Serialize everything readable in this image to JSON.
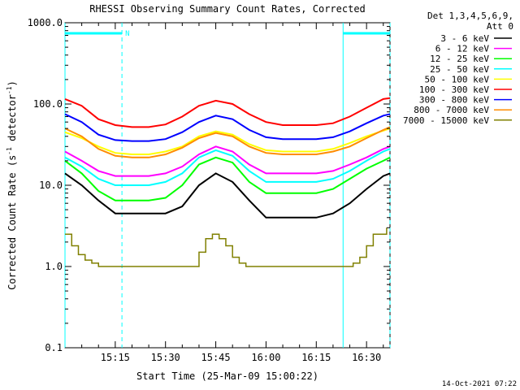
{
  "footer_date": "14-Oct-2021 07:22",
  "chart_data": {
    "type": "line",
    "title": "RHESSI Observing Summary Count Rates, Corrected",
    "xlabel": "Start Time (25-Mar-09 15:00:22)",
    "ylabel": "Corrected Count Rate (s",
    "ylabel_sup1": "-1",
    "ylabel_mid": " detector",
    "ylabel_sup2": "-1",
    "ylabel_end": ")",
    "yscale": "log",
    "ylim": [
      0.1,
      1000.0
    ],
    "xlim": [
      "15:00",
      "16:37"
    ],
    "ytick_labels": [
      "0.1",
      "1.0",
      "10.0",
      "100.0",
      "1000.0"
    ],
    "xtick_labels": [
      "15:15",
      "15:30",
      "15:45",
      "16:00",
      "16:15",
      "16:30"
    ],
    "legend_header_1": "Det 1,3,4,5,6,9,",
    "legend_header_2": "Att 0",
    "legend": "top-right",
    "night_markers": [
      {
        "label": "N",
        "start": "15:00",
        "end": "15:17"
      },
      {
        "label": "",
        "start": "16:23",
        "end": "16:37"
      }
    ],
    "series": [
      {
        "name": "3 - 6 keV",
        "color": "#000000",
        "x": [
          "15:00",
          "15:05",
          "15:10",
          "15:15",
          "15:20",
          "15:25",
          "15:30",
          "15:35",
          "15:40",
          "15:45",
          "15:50",
          "15:55",
          "16:00",
          "16:05",
          "16:10",
          "16:15",
          "16:20",
          "16:25",
          "16:30",
          "16:35",
          "16:37"
        ],
        "values": [
          14,
          10,
          6.5,
          4.5,
          4.5,
          4.5,
          4.5,
          5.5,
          10,
          14,
          11,
          6.5,
          4,
          4,
          4,
          4,
          4.5,
          6,
          9,
          13,
          14
        ]
      },
      {
        "name": "6 - 12 keV",
        "color": "#ff00ff",
        "x": [
          "15:00",
          "15:05",
          "15:10",
          "15:15",
          "15:20",
          "15:25",
          "15:30",
          "15:35",
          "15:40",
          "15:45",
          "15:50",
          "15:55",
          "16:00",
          "16:05",
          "16:10",
          "16:15",
          "16:20",
          "16:25",
          "16:30",
          "16:35",
          "16:37"
        ],
        "values": [
          26,
          20,
          15,
          13,
          13,
          13,
          14,
          17,
          24,
          30,
          26,
          18,
          14,
          14,
          14,
          14,
          15,
          18,
          22,
          28,
          30
        ]
      },
      {
        "name": "12 - 25 keV",
        "color": "#00ff00",
        "x": [
          "15:00",
          "15:05",
          "15:10",
          "15:15",
          "15:20",
          "15:25",
          "15:30",
          "15:35",
          "15:40",
          "15:45",
          "15:50",
          "15:55",
          "16:00",
          "16:05",
          "16:10",
          "16:15",
          "16:20",
          "16:25",
          "16:30",
          "16:35",
          "16:37"
        ],
        "values": [
          20,
          14,
          8.5,
          6.5,
          6.5,
          6.5,
          7,
          10,
          18,
          22,
          19,
          11,
          8,
          8,
          8,
          8,
          9,
          12,
          16,
          20,
          22
        ]
      },
      {
        "name": "25 - 50 keV",
        "color": "#00ffff",
        "x": [
          "15:00",
          "15:05",
          "15:10",
          "15:15",
          "15:20",
          "15:25",
          "15:30",
          "15:35",
          "15:40",
          "15:45",
          "15:50",
          "15:55",
          "16:00",
          "16:05",
          "16:10",
          "16:15",
          "16:20",
          "16:25",
          "16:30",
          "16:35",
          "16:37"
        ],
        "values": [
          22,
          17,
          12,
          10,
          10,
          10,
          11,
          14,
          22,
          27,
          23,
          15,
          11,
          11,
          11,
          11,
          12,
          15,
          20,
          26,
          28
        ]
      },
      {
        "name": "50 - 100 keV",
        "color": "#ffff00",
        "x": [
          "15:00",
          "15:05",
          "15:10",
          "15:15",
          "15:20",
          "15:25",
          "15:30",
          "15:35",
          "15:40",
          "15:45",
          "15:50",
          "15:55",
          "16:00",
          "16:05",
          "16:10",
          "16:15",
          "16:20",
          "16:25",
          "16:30",
          "16:35",
          "16:37"
        ],
        "values": [
          45,
          38,
          30,
          25,
          24,
          24,
          26,
          30,
          40,
          46,
          42,
          32,
          27,
          26,
          26,
          26,
          28,
          33,
          40,
          47,
          50
        ]
      },
      {
        "name": "100 - 300 keV",
        "color": "#ff0000",
        "x": [
          "15:00",
          "15:05",
          "15:10",
          "15:15",
          "15:20",
          "15:25",
          "15:30",
          "15:35",
          "15:40",
          "15:45",
          "15:50",
          "15:55",
          "16:00",
          "16:05",
          "16:10",
          "16:15",
          "16:20",
          "16:25",
          "16:30",
          "16:35",
          "16:37"
        ],
        "values": [
          115,
          95,
          65,
          55,
          52,
          52,
          56,
          70,
          95,
          110,
          100,
          75,
          60,
          55,
          55,
          55,
          58,
          70,
          90,
          115,
          118
        ]
      },
      {
        "name": "300 - 800 keV",
        "color": "#0000ff",
        "x": [
          "15:00",
          "15:05",
          "15:10",
          "15:15",
          "15:20",
          "15:25",
          "15:30",
          "15:35",
          "15:40",
          "15:45",
          "15:50",
          "15:55",
          "16:00",
          "16:05",
          "16:10",
          "16:15",
          "16:20",
          "16:25",
          "16:30",
          "16:35",
          "16:37"
        ],
        "values": [
          75,
          60,
          42,
          36,
          35,
          35,
          37,
          45,
          60,
          72,
          65,
          48,
          39,
          37,
          37,
          37,
          39,
          46,
          58,
          72,
          75
        ]
      },
      {
        "name": "800 - 7000 keV",
        "color": "#ff8c00",
        "x": [
          "15:00",
          "15:05",
          "15:10",
          "15:15",
          "15:20",
          "15:25",
          "15:30",
          "15:35",
          "15:40",
          "15:45",
          "15:50",
          "15:55",
          "16:00",
          "16:05",
          "16:10",
          "16:15",
          "16:20",
          "16:25",
          "16:30",
          "16:35",
          "16:37"
        ],
        "values": [
          50,
          40,
          28,
          23,
          22,
          22,
          24,
          29,
          38,
          44,
          40,
          30,
          25,
          24,
          24,
          24,
          26,
          30,
          38,
          48,
          52
        ]
      },
      {
        "name": "7000 - 15000 keV",
        "color": "#808000",
        "x": [
          "15:00",
          "15:02",
          "15:04",
          "15:06",
          "15:08",
          "15:10",
          "15:12",
          "15:14",
          "15:40",
          "15:42",
          "15:44",
          "15:46",
          "15:48",
          "15:50",
          "15:52",
          "15:54",
          "16:24",
          "16:26",
          "16:28",
          "16:30",
          "16:32",
          "16:34",
          "16:36"
        ],
        "values": [
          2.5,
          1.8,
          1.4,
          1.2,
          1.1,
          1.0,
          1.0,
          1.0,
          1.5,
          2.2,
          2.5,
          2.2,
          1.8,
          1.3,
          1.1,
          1.0,
          1.0,
          1.1,
          1.3,
          1.8,
          2.5,
          2.5,
          3.0
        ]
      }
    ]
  }
}
